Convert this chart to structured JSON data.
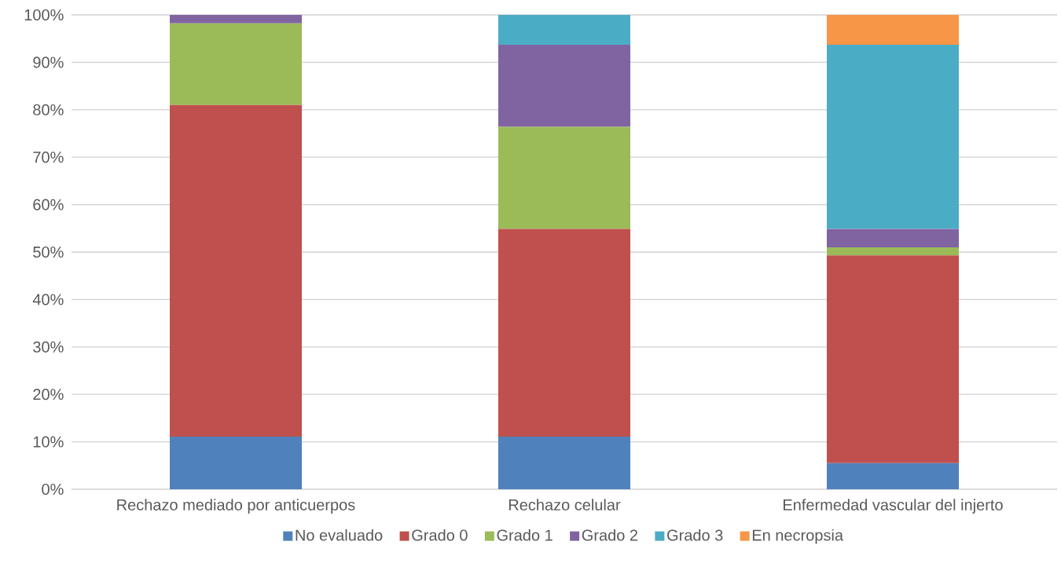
{
  "chart_data": {
    "type": "bar",
    "stacked": true,
    "categories": [
      "Rechazo mediado por anticuerpos",
      "Rechazo celular",
      "Enfermedad vascular del injerto"
    ],
    "series": [
      {
        "name": "No evaluado",
        "color": "#4f81bd",
        "values": [
          11.1,
          11.1,
          5.5
        ]
      },
      {
        "name": "Grado 0",
        "color": "#c0504d",
        "values": [
          69.9,
          43.8,
          43.8
        ]
      },
      {
        "name": "Grado 1",
        "color": "#9bbb59",
        "values": [
          17.2,
          21.5,
          1.7
        ]
      },
      {
        "name": "Grado 2",
        "color": "#8064a2",
        "values": [
          1.8,
          17.3,
          3.9
        ]
      },
      {
        "name": "Grado 3",
        "color": "#4bacc6",
        "values": [
          null,
          6.3,
          38.8
        ]
      },
      {
        "name": "En necropsia",
        "color": "#f79646",
        "values": [
          null,
          null,
          6.3
        ]
      }
    ],
    "ylim": [
      0,
      100
    ],
    "yticks": [
      {
        "value": 0,
        "label": "0%"
      },
      {
        "value": 10,
        "label": "10%"
      },
      {
        "value": 20,
        "label": "20%"
      },
      {
        "value": 30,
        "label": "30%"
      },
      {
        "value": 40,
        "label": "40%"
      },
      {
        "value": 50,
        "label": "50%"
      },
      {
        "value": 60,
        "label": "60%"
      },
      {
        "value": 70,
        "label": "70%"
      },
      {
        "value": 80,
        "label": "80%"
      },
      {
        "value": 90,
        "label": "90%"
      },
      {
        "value": 100,
        "label": "100%"
      }
    ],
    "grid": "y",
    "legend": "bottom"
  }
}
